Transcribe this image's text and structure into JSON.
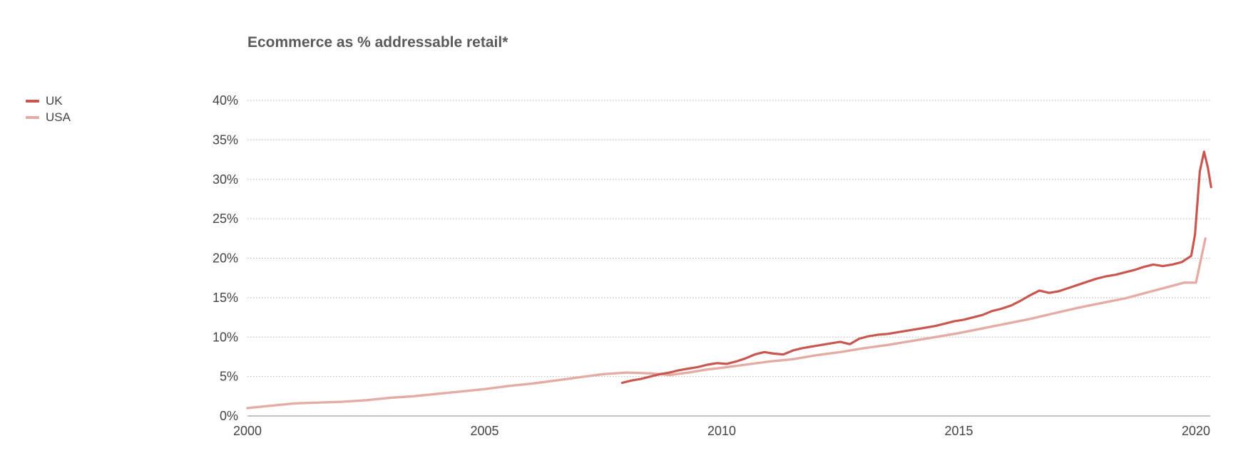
{
  "chart_data": {
    "type": "line",
    "title": "Ecommerce as % addressable retail*",
    "xlabel": "",
    "ylabel": "",
    "xlim": [
      2000,
      2020.3
    ],
    "ylim": [
      0,
      40
    ],
    "grid": true,
    "legend_position": "top-left",
    "x_ticks": [
      {
        "value": 2000,
        "label": "2000"
      },
      {
        "value": 2005,
        "label": "2005"
      },
      {
        "value": 2010,
        "label": "2010"
      },
      {
        "value": 2015,
        "label": "2015"
      },
      {
        "value": 2020,
        "label": "2020"
      }
    ],
    "y_ticks": [
      {
        "value": 0,
        "label": "0%"
      },
      {
        "value": 5,
        "label": "5%"
      },
      {
        "value": 10,
        "label": "10%"
      },
      {
        "value": 15,
        "label": "15%"
      },
      {
        "value": 20,
        "label": "20%"
      },
      {
        "value": 25,
        "label": "25%"
      },
      {
        "value": 30,
        "label": "30%"
      },
      {
        "value": 35,
        "label": "35%"
      },
      {
        "value": 40,
        "label": "40%"
      }
    ],
    "series": [
      {
        "name": "UK",
        "color": "#c9574f",
        "points": [
          [
            2007.9,
            4.2
          ],
          [
            2008.1,
            4.5
          ],
          [
            2008.3,
            4.7
          ],
          [
            2008.5,
            5.0
          ],
          [
            2008.7,
            5.3
          ],
          [
            2008.9,
            5.5
          ],
          [
            2009.1,
            5.8
          ],
          [
            2009.3,
            6.0
          ],
          [
            2009.5,
            6.2
          ],
          [
            2009.7,
            6.5
          ],
          [
            2009.9,
            6.7
          ],
          [
            2010.1,
            6.6
          ],
          [
            2010.3,
            6.9
          ],
          [
            2010.5,
            7.3
          ],
          [
            2010.7,
            7.8
          ],
          [
            2010.9,
            8.1
          ],
          [
            2011.1,
            7.9
          ],
          [
            2011.3,
            7.8
          ],
          [
            2011.5,
            8.3
          ],
          [
            2011.7,
            8.6
          ],
          [
            2011.9,
            8.8
          ],
          [
            2012.1,
            9.0
          ],
          [
            2012.3,
            9.2
          ],
          [
            2012.5,
            9.4
          ],
          [
            2012.7,
            9.1
          ],
          [
            2012.9,
            9.8
          ],
          [
            2013.1,
            10.1
          ],
          [
            2013.3,
            10.3
          ],
          [
            2013.5,
            10.4
          ],
          [
            2013.7,
            10.6
          ],
          [
            2013.9,
            10.8
          ],
          [
            2014.1,
            11.0
          ],
          [
            2014.3,
            11.2
          ],
          [
            2014.5,
            11.4
          ],
          [
            2014.7,
            11.7
          ],
          [
            2014.9,
            12.0
          ],
          [
            2015.1,
            12.2
          ],
          [
            2015.3,
            12.5
          ],
          [
            2015.5,
            12.8
          ],
          [
            2015.7,
            13.3
          ],
          [
            2015.9,
            13.6
          ],
          [
            2016.1,
            14.0
          ],
          [
            2016.3,
            14.6
          ],
          [
            2016.5,
            15.3
          ],
          [
            2016.7,
            15.9
          ],
          [
            2016.9,
            15.6
          ],
          [
            2017.1,
            15.8
          ],
          [
            2017.3,
            16.2
          ],
          [
            2017.5,
            16.6
          ],
          [
            2017.7,
            17.0
          ],
          [
            2017.9,
            17.4
          ],
          [
            2018.1,
            17.7
          ],
          [
            2018.3,
            17.9
          ],
          [
            2018.5,
            18.2
          ],
          [
            2018.7,
            18.5
          ],
          [
            2018.9,
            18.9
          ],
          [
            2019.1,
            19.2
          ],
          [
            2019.3,
            19.0
          ],
          [
            2019.5,
            19.2
          ],
          [
            2019.7,
            19.5
          ],
          [
            2019.9,
            20.3
          ],
          [
            2019.98,
            23.0
          ],
          [
            2020.08,
            31.0
          ],
          [
            2020.17,
            33.5
          ],
          [
            2020.25,
            31.5
          ],
          [
            2020.32,
            29.0
          ]
        ]
      },
      {
        "name": "USA",
        "color": "#e5aca5",
        "points": [
          [
            2000.0,
            1.0
          ],
          [
            2000.5,
            1.3
          ],
          [
            2001.0,
            1.6
          ],
          [
            2001.5,
            1.7
          ],
          [
            2002.0,
            1.8
          ],
          [
            2002.5,
            2.0
          ],
          [
            2003.0,
            2.3
          ],
          [
            2003.5,
            2.5
          ],
          [
            2004.0,
            2.8
          ],
          [
            2004.5,
            3.1
          ],
          [
            2005.0,
            3.4
          ],
          [
            2005.5,
            3.8
          ],
          [
            2006.0,
            4.1
          ],
          [
            2006.5,
            4.5
          ],
          [
            2007.0,
            4.9
          ],
          [
            2007.5,
            5.3
          ],
          [
            2008.0,
            5.5
          ],
          [
            2008.5,
            5.4
          ],
          [
            2008.9,
            5.2
          ],
          [
            2009.3,
            5.5
          ],
          [
            2009.7,
            5.9
          ],
          [
            2010.0,
            6.1
          ],
          [
            2010.5,
            6.5
          ],
          [
            2011.0,
            6.9
          ],
          [
            2011.5,
            7.2
          ],
          [
            2012.0,
            7.7
          ],
          [
            2012.5,
            8.1
          ],
          [
            2013.0,
            8.6
          ],
          [
            2013.5,
            9.0
          ],
          [
            2014.0,
            9.5
          ],
          [
            2014.5,
            10.0
          ],
          [
            2015.0,
            10.5
          ],
          [
            2015.5,
            11.1
          ],
          [
            2016.0,
            11.7
          ],
          [
            2016.5,
            12.3
          ],
          [
            2017.0,
            13.0
          ],
          [
            2017.5,
            13.7
          ],
          [
            2018.0,
            14.3
          ],
          [
            2018.5,
            14.9
          ],
          [
            2019.0,
            15.7
          ],
          [
            2019.5,
            16.5
          ],
          [
            2019.75,
            16.9
          ],
          [
            2020.0,
            16.9
          ],
          [
            2020.2,
            22.5
          ]
        ]
      }
    ]
  }
}
